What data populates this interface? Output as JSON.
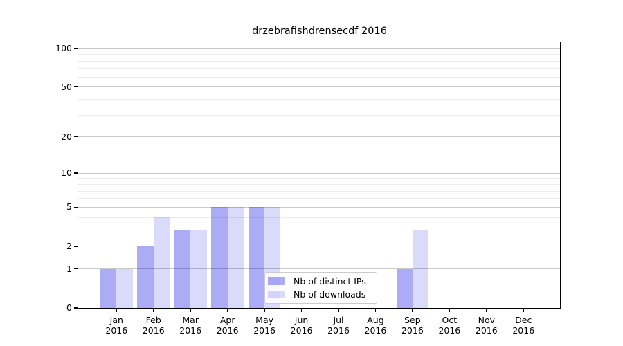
{
  "chart_data": {
    "type": "bar",
    "title": "drzebrafishdrensecdf 2016",
    "x_categories": [
      "Jan",
      "Feb",
      "Mar",
      "Apr",
      "May",
      "Jun",
      "Jul",
      "Aug",
      "Sep",
      "Oct",
      "Nov",
      "Dec"
    ],
    "x_year": "2016",
    "series": [
      {
        "name": "Nb of distinct IPs",
        "values": [
          1,
          2,
          3,
          5,
          5,
          0,
          0,
          0,
          1,
          0,
          0,
          0
        ],
        "color": "rgba(10,10,230,0.34)",
        "hex_on_white": "#a9a9f6"
      },
      {
        "name": "Nb of downloads",
        "values": [
          1,
          4,
          3,
          5,
          5,
          0,
          0,
          0,
          3,
          0,
          0,
          0
        ],
        "color": "rgba(10,10,230,0.15)",
        "hex_on_white": "#dbdbf8"
      }
    ],
    "y_scale": "log1p",
    "y_major_ticks": [
      0,
      1,
      2,
      5,
      10,
      20,
      50,
      100
    ],
    "y_minor_ticks": [
      3,
      4,
      6,
      7,
      8,
      9,
      30,
      40,
      60,
      70,
      80,
      90
    ],
    "ylim": [
      0,
      112
    ],
    "xlabel": "",
    "ylabel": "",
    "grid": true,
    "legend_position": "lower-center",
    "colors": {
      "grid_major": "#c9c9c9",
      "grid_minor": "#ececec",
      "axis": "#000000",
      "background": "#ffffff"
    }
  }
}
